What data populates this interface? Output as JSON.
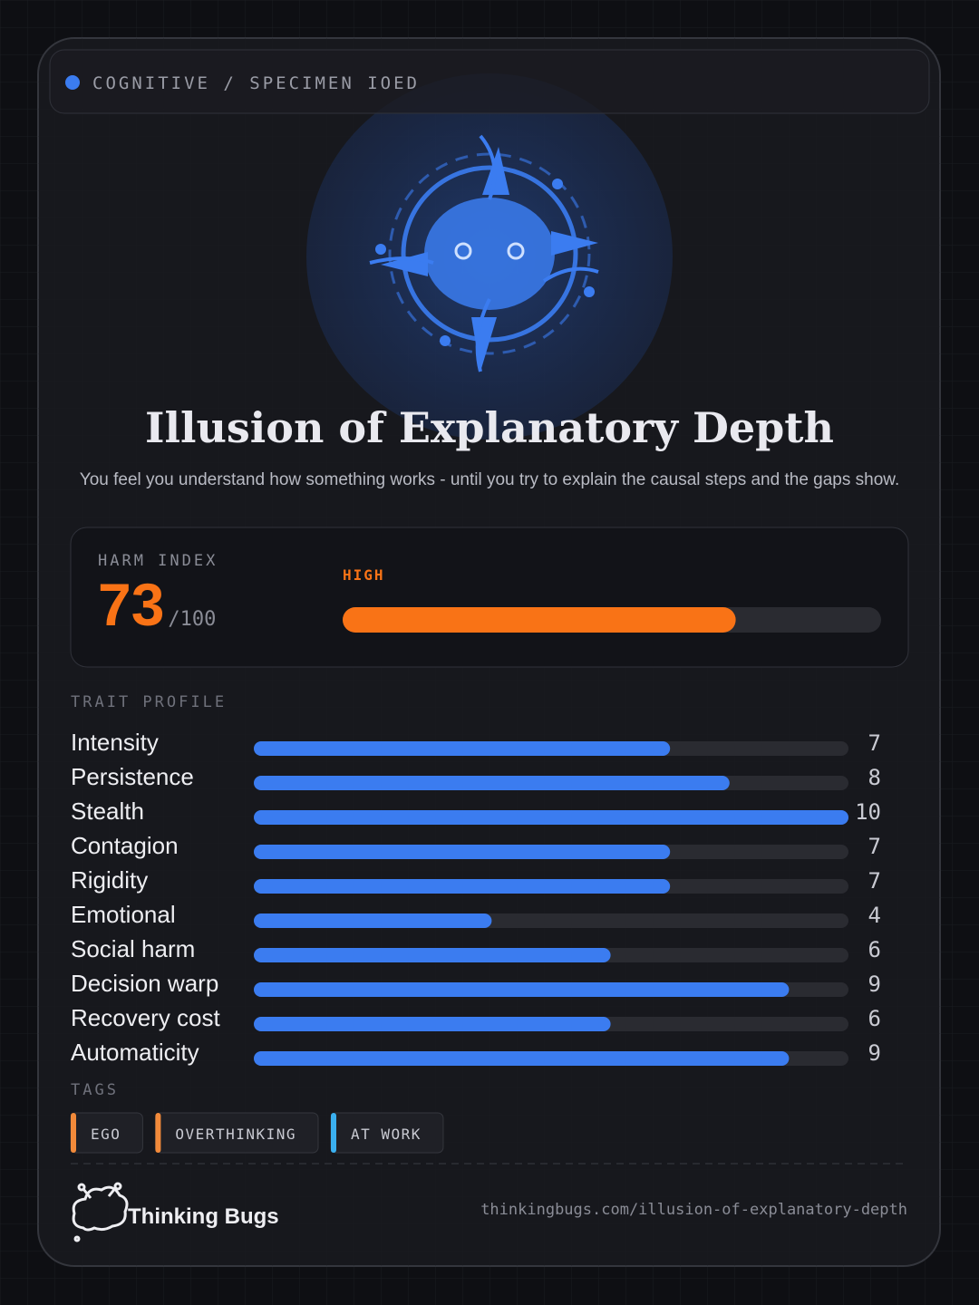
{
  "header": {
    "label": "COGNITIVE / SPECIMEN IOED"
  },
  "title": "Illusion of Explanatory Depth",
  "subtitle": "You feel you understand how something works - until you try to explain the causal steps and the gaps show.",
  "harm_index": {
    "label": "HARM INDEX",
    "value": 73,
    "max_label": "/100",
    "max": 100,
    "level": "HIGH",
    "color": "#f97316"
  },
  "trait_profile": {
    "title": "TRAIT PROFILE",
    "xlim": [
      0,
      10
    ],
    "color": "#3b7cf0",
    "items": [
      {
        "name": "Intensity",
        "value": 7
      },
      {
        "name": "Persistence",
        "value": 8
      },
      {
        "name": "Stealth",
        "value": 10
      },
      {
        "name": "Contagion",
        "value": 7
      },
      {
        "name": "Rigidity",
        "value": 7
      },
      {
        "name": "Emotional",
        "value": 4
      },
      {
        "name": "Social harm",
        "value": 6
      },
      {
        "name": "Decision warp",
        "value": 9
      },
      {
        "name": "Recovery cost",
        "value": 6
      },
      {
        "name": "Automaticity",
        "value": 9
      }
    ]
  },
  "tags": {
    "title": "TAGS",
    "items": [
      {
        "label": "EGO",
        "color": "#f28a3a"
      },
      {
        "label": "OVERTHINKING",
        "color": "#f28a3a"
      },
      {
        "label": "AT WORK",
        "color": "#3ab0f0"
      }
    ]
  },
  "footer": {
    "brand": "Thinking Bugs",
    "url": "thinkingbugs.com/illusion-of-explanatory-depth"
  }
}
